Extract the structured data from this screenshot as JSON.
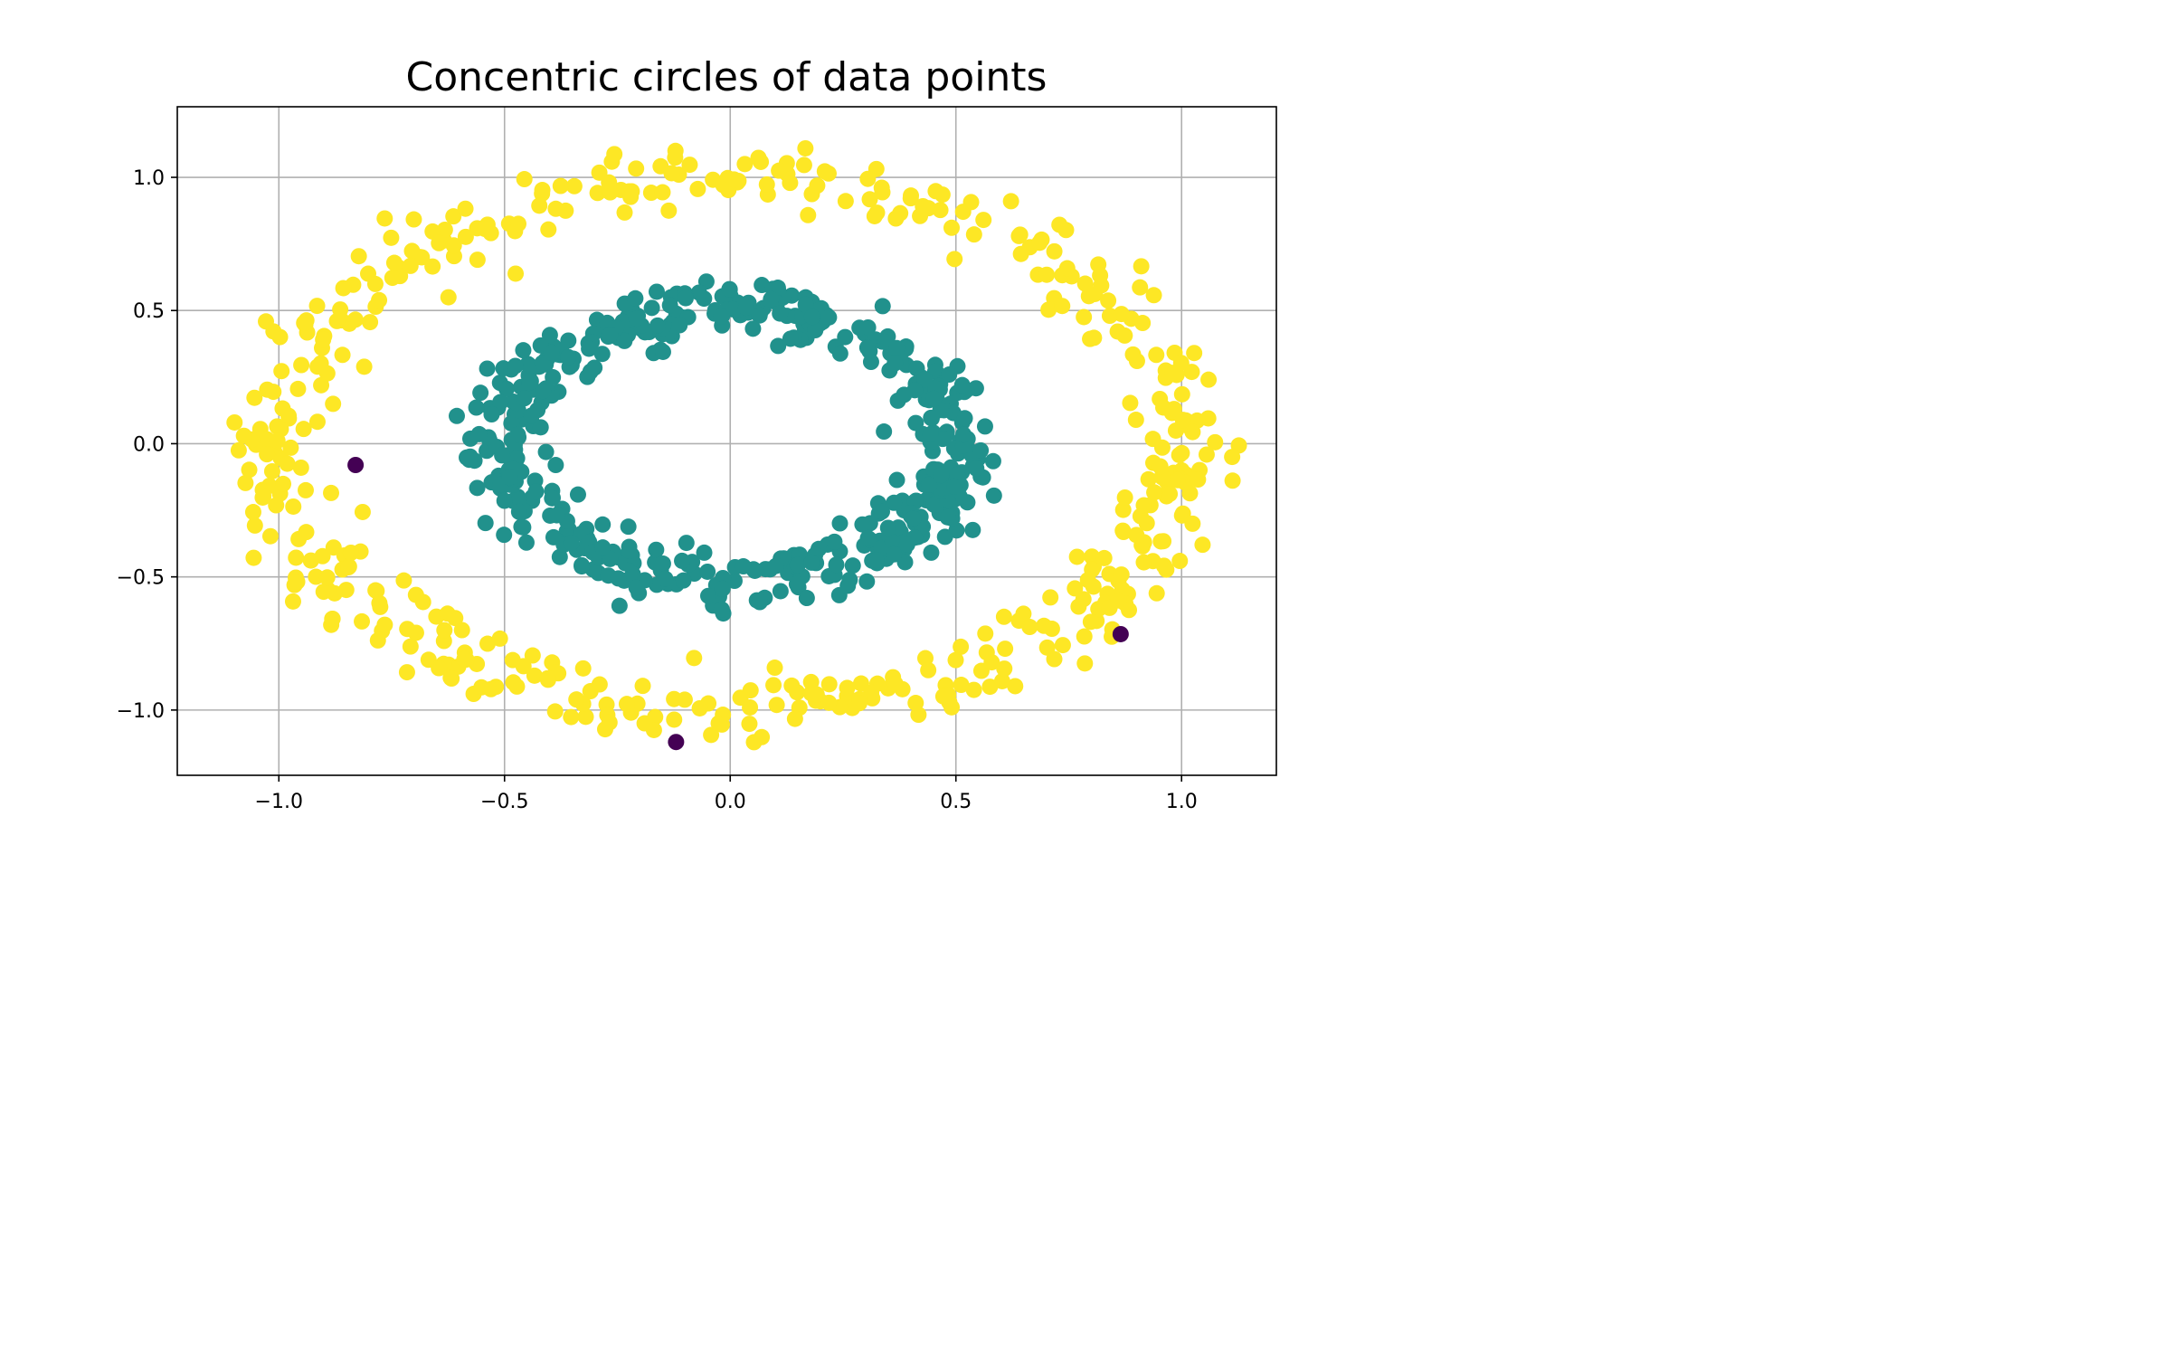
{
  "chart_data": {
    "type": "scatter",
    "title": "Concentric circles of data points",
    "xlabel": "",
    "ylabel": "",
    "xlim": [
      -1.225,
      1.21
    ],
    "ylim": [
      -1.245,
      1.265
    ],
    "grid": true,
    "xticks": [
      -1.0,
      -0.5,
      0.0,
      0.5,
      1.0
    ],
    "yticks": [
      -1.0,
      -0.5,
      0.0,
      0.5,
      1.0
    ],
    "xtick_labels": [
      "−1.0",
      "−0.5",
      "0.0",
      "0.5",
      "1.0"
    ],
    "ytick_labels": [
      "−1.0",
      "−0.5",
      "0.0",
      "0.5",
      "1.0"
    ],
    "colormap": "viridis",
    "groups": [
      {
        "color": "#fde725",
        "description": "outer ring",
        "ring": {
          "cx": 0.0,
          "cy": 0.0,
          "rx": 1.0,
          "ry": 1.0,
          "noise": 0.06,
          "count": 500
        }
      },
      {
        "color": "#21918c",
        "description": "inner ring",
        "ring": {
          "cx": 0.0,
          "cy": 0.0,
          "rx": 0.5,
          "ry": 0.5,
          "noise": 0.05,
          "count": 500
        }
      },
      {
        "color": "#440154",
        "description": "outliers",
        "points": [
          {
            "x": -0.83,
            "y": -0.08
          },
          {
            "x": -0.12,
            "y": -1.12
          },
          {
            "x": 0.865,
            "y": -0.715
          }
        ]
      }
    ]
  }
}
